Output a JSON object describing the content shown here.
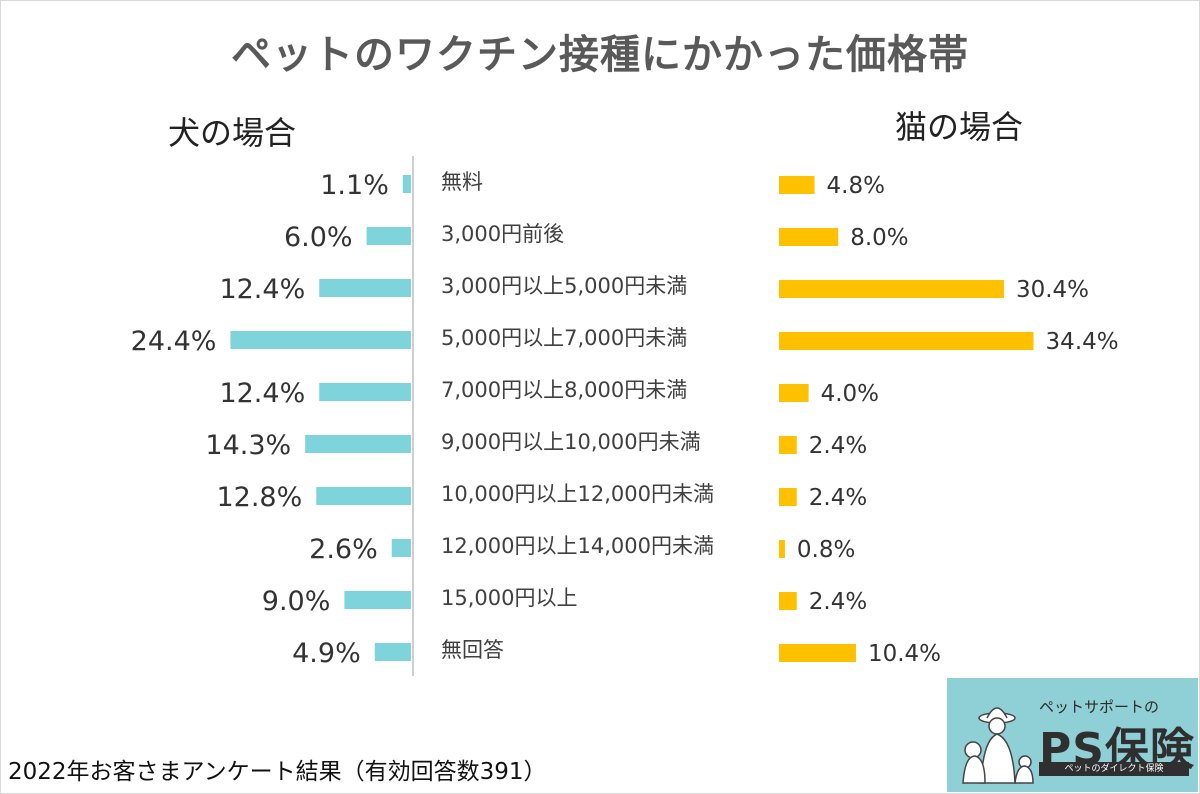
{
  "title": "ペットのワクチン接種にかかった価格帯",
  "dog_label": "犬の場合",
  "cat_label": "猫の場合",
  "footer": "2022年お客さまアンケート結果（有効回答数391）",
  "logo": {
    "tagline": "ペットサポートの",
    "main": "PS保険",
    "sub": "ペットのダイレクト保険"
  },
  "chart_data": {
    "type": "bar",
    "categories": [
      "無料",
      "3,000円前後",
      "3,000円以上5,000円未満",
      "5,000円以上7,000円未満",
      "7,000円以上8,000円未満",
      "9,000円以上10,000円未満",
      "10,000円以上12,000円未満",
      "12,000円以上14,000円未満",
      "15,000円以上",
      "無回答"
    ],
    "series": [
      {
        "name": "犬の場合",
        "color": "#7fd3da",
        "values": [
          1.1,
          6.0,
          12.4,
          24.4,
          12.4,
          14.3,
          12.8,
          2.6,
          9.0,
          4.9
        ],
        "labels": [
          "1.1%",
          "6.0%",
          "12.4%",
          "24.4%",
          "12.4%",
          "14.3%",
          "12.8%",
          "2.6%",
          "9.0%",
          "4.9%"
        ]
      },
      {
        "name": "猫の場合",
        "color": "#ffc000",
        "values": [
          4.8,
          8.0,
          30.4,
          34.4,
          4.0,
          2.4,
          2.4,
          0.8,
          2.4,
          10.4
        ],
        "labels": [
          "4.8%",
          "8.0%",
          "30.4%",
          "34.4%",
          "4.0%",
          "2.4%",
          "2.4%",
          "0.8%",
          "2.4%",
          "10.4%"
        ]
      }
    ]
  }
}
